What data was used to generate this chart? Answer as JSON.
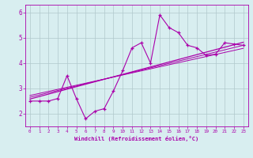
{
  "title": "",
  "xlabel": "Windchill (Refroidissement éolien,°C)",
  "ylabel": "",
  "bg_color": "#d8eef0",
  "grid_color": "#b0c8cc",
  "line_color": "#aa00aa",
  "xlim": [
    -0.5,
    23.5
  ],
  "ylim": [
    1.5,
    6.3
  ],
  "yticks": [
    2,
    3,
    4,
    5,
    6
  ],
  "xticks": [
    0,
    1,
    2,
    3,
    4,
    5,
    6,
    7,
    8,
    9,
    10,
    11,
    12,
    13,
    14,
    15,
    16,
    17,
    18,
    19,
    20,
    21,
    22,
    23
  ],
  "main_line_x": [
    0,
    1,
    2,
    3,
    4,
    5,
    6,
    7,
    8,
    9,
    10,
    11,
    12,
    13,
    14,
    15,
    16,
    17,
    18,
    19,
    20,
    21,
    22,
    23
  ],
  "main_line_y": [
    2.5,
    2.5,
    2.5,
    2.6,
    3.5,
    2.6,
    1.8,
    2.1,
    2.2,
    2.9,
    3.7,
    4.6,
    4.8,
    4.0,
    5.9,
    5.4,
    5.2,
    4.7,
    4.6,
    4.3,
    4.35,
    4.8,
    4.75,
    4.7
  ],
  "reg_line1_x": [
    0,
    23
  ],
  "reg_line1_y": [
    2.58,
    4.82
  ],
  "reg_line2_x": [
    0,
    23
  ],
  "reg_line2_y": [
    2.72,
    4.58
  ],
  "reg_line3_x": [
    0,
    23
  ],
  "reg_line3_y": [
    2.65,
    4.7
  ]
}
